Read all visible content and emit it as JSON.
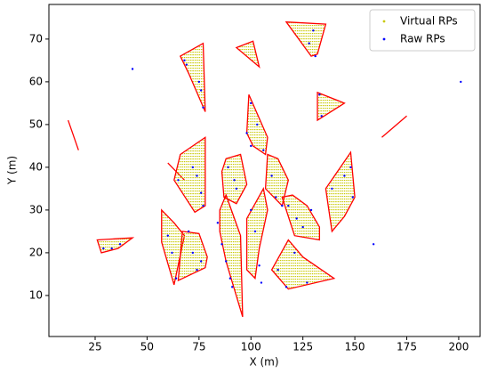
{
  "chart_data": {
    "type": "scatter",
    "x_label": "X (m)",
    "y_label": "Y (m)",
    "xlim": [
      2.75,
      210.3
    ],
    "ylim": [
      0.4,
      78.1
    ],
    "xticks": [
      25,
      50,
      75,
      100,
      125,
      150,
      175,
      200
    ],
    "yticks": [
      10,
      20,
      30,
      40,
      50,
      60,
      70
    ],
    "legend": "upper right",
    "outline_color": "#ff0000",
    "regions": [
      {
        "x": [
          12,
          17
        ],
        "y": [
          51,
          44
        ]
      },
      {
        "x": [
          60,
          68
        ],
        "y": [
          41,
          37
        ]
      },
      {
        "x": [
          163,
          175
        ],
        "y": [
          47,
          52
        ]
      },
      {
        "x": [
          26,
          43,
          36,
          28
        ],
        "y": [
          23,
          23.5,
          21,
          20
        ]
      },
      {
        "x": [
          66,
          77,
          78,
          70
        ],
        "y": [
          66,
          69,
          53,
          62
        ]
      },
      {
        "x": [
          93,
          101,
          104
        ],
        "y": [
          68,
          69.5,
          63.5
        ]
      },
      {
        "x": [
          117,
          136,
          132,
          129
        ],
        "y": [
          74,
          73.5,
          66.5,
          66
        ]
      },
      {
        "x": [
          132,
          145,
          132
        ],
        "y": [
          57.5,
          55,
          51
        ]
      },
      {
        "x": [
          99,
          108,
          107,
          101,
          98
        ],
        "y": [
          57,
          47,
          43,
          45,
          48
        ]
      },
      {
        "x": [
          66,
          78,
          78,
          73,
          63
        ],
        "y": [
          43,
          47,
          31,
          29.5,
          37
        ]
      },
      {
        "x": [
          88,
          95,
          98,
          93,
          87,
          86
        ],
        "y": [
          42,
          43,
          36,
          31.5,
          33,
          39
        ]
      },
      {
        "x": [
          108,
          113,
          118,
          115,
          107
        ],
        "y": [
          43,
          42,
          37,
          31,
          35
        ]
      },
      {
        "x": [
          136,
          148,
          150,
          145,
          139
        ],
        "y": [
          35,
          43.5,
          33,
          28.5,
          25
        ]
      },
      {
        "x": [
          115,
          120,
          127,
          133,
          133,
          121
        ],
        "y": [
          33,
          33.5,
          31,
          26,
          23,
          24
        ]
      },
      {
        "x": [
          57,
          63,
          68,
          63,
          57
        ],
        "y": [
          30,
          27,
          24,
          12.5,
          22.5
        ]
      },
      {
        "x": [
          67,
          75,
          79,
          78,
          65
        ],
        "y": [
          25,
          24.5,
          19,
          16.5,
          13.5
        ]
      },
      {
        "x": [
          85,
          88,
          95,
          96,
          88,
          85
        ],
        "y": [
          30,
          33.5,
          24,
          5,
          18,
          25
        ]
      },
      {
        "x": [
          98,
          106,
          108,
          104,
          102,
          98
        ],
        "y": [
          28,
          35,
          30,
          21,
          14,
          16
        ]
      },
      {
        "x": [
          110,
          118,
          125,
          140,
          118
        ],
        "y": [
          16,
          23,
          19,
          14,
          11.5
        ]
      }
    ],
    "series": [
      {
        "name": "Virtual RPs",
        "color": "#c8c800"
      },
      {
        "name": "Raw RPs",
        "color": "#0000ff",
        "x": [
          43,
          201,
          159,
          68,
          69,
          75,
          76,
          77,
          98,
          100,
          128,
          130,
          131,
          133,
          134,
          100,
          103,
          106,
          72,
          74,
          76,
          77,
          65,
          89,
          92,
          93,
          110,
          112,
          115,
          139,
          145,
          148,
          149,
          118,
          122,
          125,
          129,
          60,
          62,
          64,
          70,
          72,
          74,
          76,
          84,
          86,
          88,
          90,
          91,
          100,
          102,
          104,
          105,
          113,
          117,
          121,
          127,
          29,
          33,
          37
        ],
        "y": [
          63,
          60,
          22,
          65,
          64,
          60,
          58,
          54,
          48,
          55,
          69,
          72,
          66,
          57,
          52,
          45,
          50,
          44,
          40,
          38,
          34,
          31,
          37,
          40,
          37,
          35,
          38,
          33,
          31,
          35,
          38,
          40,
          33,
          31,
          28,
          26,
          30,
          24,
          20,
          14,
          25,
          20,
          16,
          18,
          27,
          22,
          18,
          14,
          12,
          30,
          25,
          17,
          13,
          16,
          12,
          20,
          13,
          21,
          21,
          22
        ]
      }
    ]
  }
}
